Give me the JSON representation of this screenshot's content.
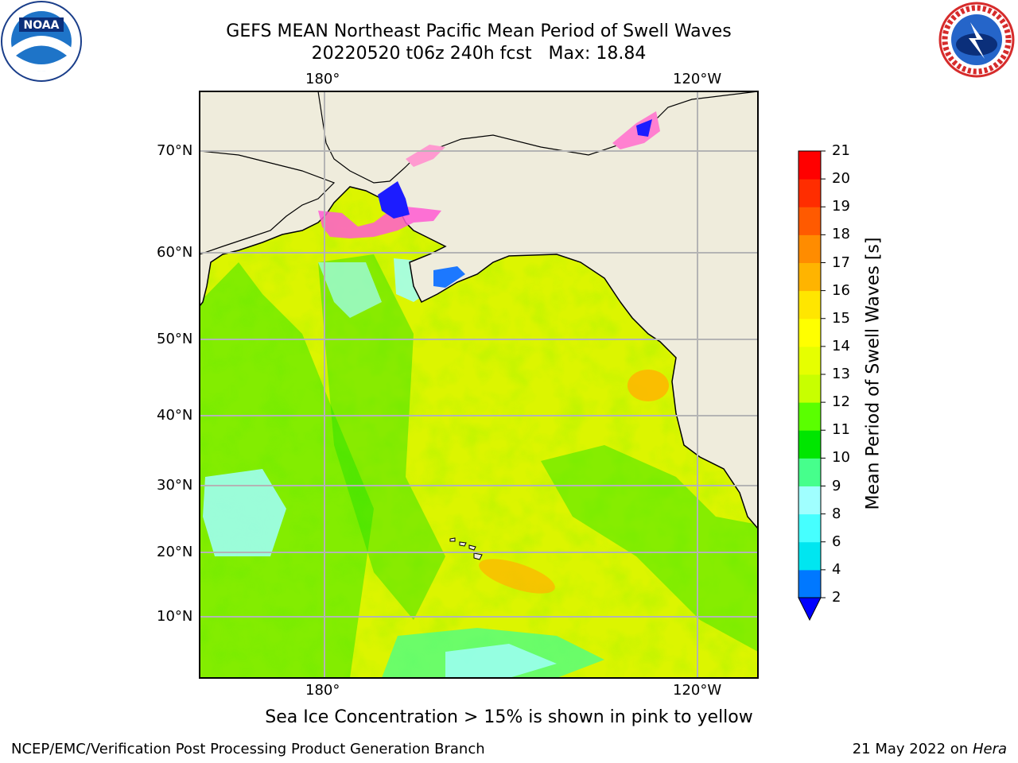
{
  "header": {
    "title_line1": "GEFS MEAN Northeast Pacific Mean Period of Swell Waves",
    "title_line2": "20220520 t06z 240h fcst   Max: 18.84"
  },
  "logos": {
    "left": "NOAA",
    "right": "NATIONAL WEATHER SERVICE"
  },
  "map": {
    "lon_labels_top": [
      "180°",
      "120°W"
    ],
    "lon_labels_bottom": [
      "180°",
      "120°W"
    ],
    "lat_labels": [
      "70°N",
      "60°N",
      "50°N",
      "40°N",
      "30°N",
      "20°N",
      "10°N"
    ],
    "colors": {
      "land": "#efecdc",
      "ocean_base": "#dcf500",
      "coast": "#000000",
      "grid": "#b4b4b4"
    }
  },
  "colorbar": {
    "title": "Mean Period of Swell Waves [s]",
    "ticks": [
      "2",
      "4",
      "6",
      "8",
      "9",
      "10",
      "11",
      "12",
      "13",
      "14",
      "15",
      "16",
      "17",
      "18",
      "19",
      "20",
      "21"
    ],
    "colors": [
      "#0000ff",
      "#0078ff",
      "#00e6f0",
      "#46ffff",
      "#a0ffff",
      "#46ff8c",
      "#00e600",
      "#5aff00",
      "#c8ff00",
      "#e6ff00",
      "#ffff00",
      "#ffe600",
      "#ffb400",
      "#ff8c00",
      "#ff5a00",
      "#ff2d00",
      "#ff0000"
    ]
  },
  "caption": "Sea Ice Concentration > 15% is shown in pink to yellow",
  "footer": {
    "left": "NCEP/EMC/Verification Post Processing Product Generation Branch",
    "right_prefix": "21 May 2022 on ",
    "right_italic": "Hera"
  }
}
